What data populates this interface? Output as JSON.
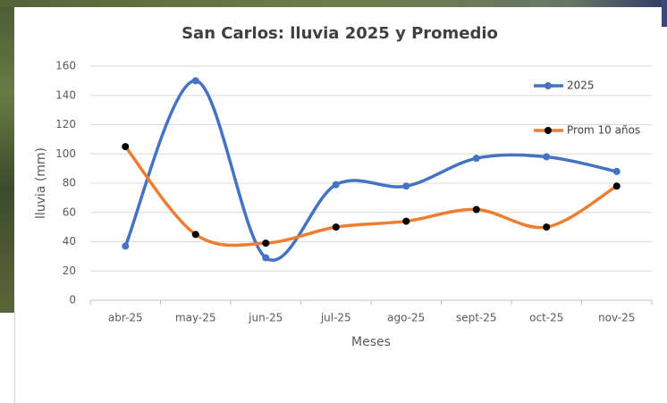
{
  "chart_data": {
    "type": "line",
    "title": "San Carlos:  lluvia 2025 y Promedio",
    "x_label": "Meses",
    "y_label": "lluvia (mm)",
    "categories": [
      "abr-25",
      "may-25",
      "jun-25",
      "jul-25",
      "ago-25",
      "sept-25",
      "oct-25",
      "nov-25"
    ],
    "series": [
      {
        "name": "2025",
        "color": "#4472c4",
        "marker_color": "#4472c4",
        "values": [
          37,
          150,
          29,
          79,
          78,
          97,
          98,
          88
        ]
      },
      {
        "name": "Prom 10 años",
        "color": "#ed7d31",
        "marker_color": "#000000",
        "values": [
          105,
          45,
          39,
          50,
          54,
          62,
          50,
          78
        ]
      }
    ],
    "ylim": [
      0,
      160
    ],
    "yticks": [
      0,
      20,
      40,
      60,
      80,
      100,
      120,
      140,
      160
    ],
    "grid": true,
    "smooth": true,
    "legend": "right"
  }
}
